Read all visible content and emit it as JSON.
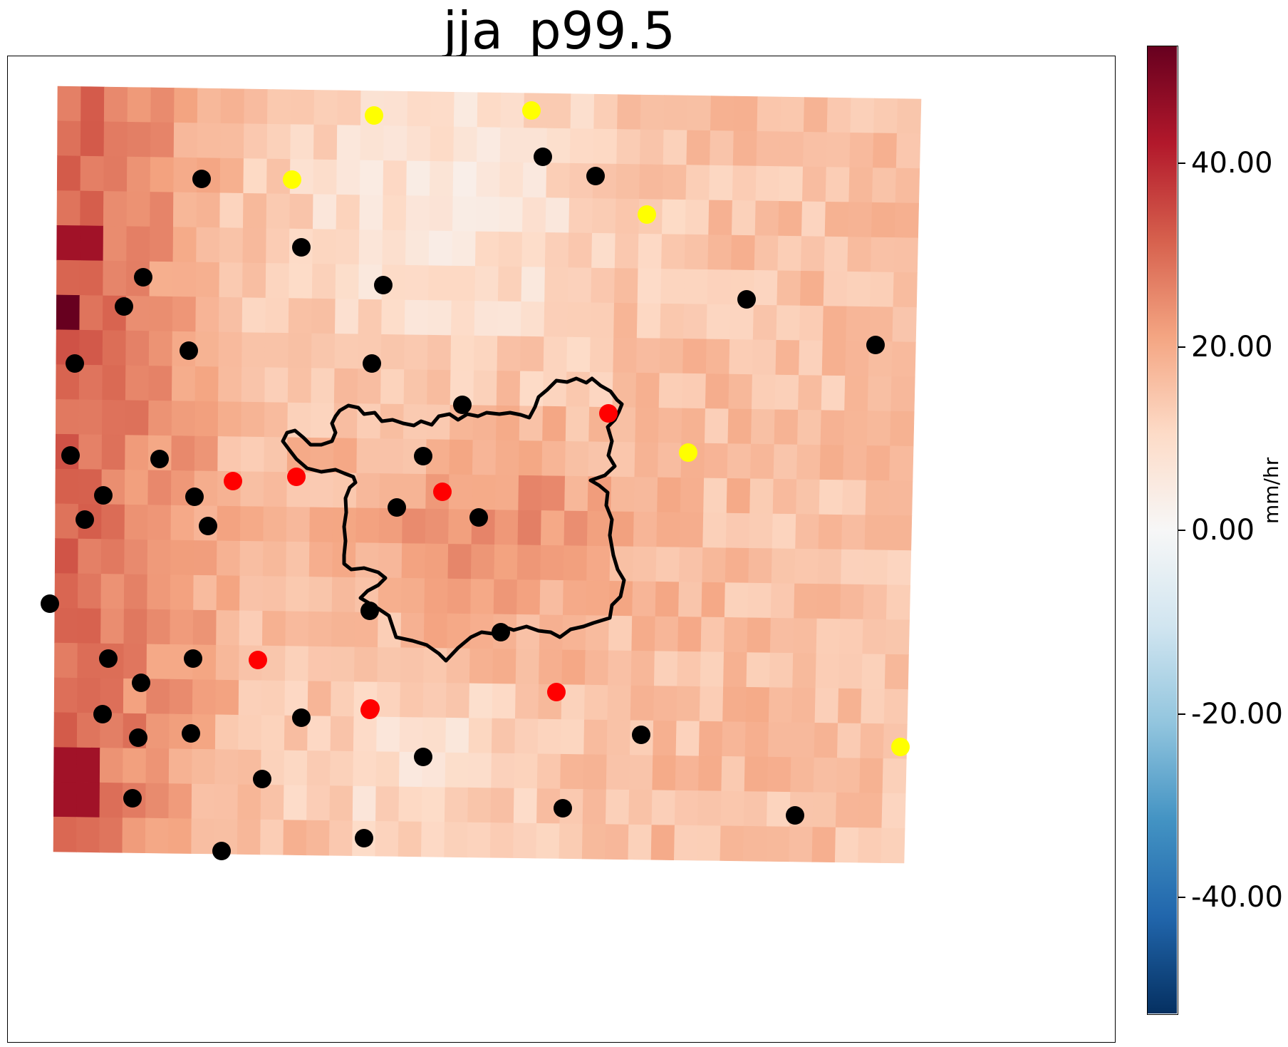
{
  "title": "jja_p99.5",
  "colorbar": {
    "unit": "mm/hr",
    "min": -52,
    "max": 52,
    "colormap": "RdBu_r",
    "ticks": [
      {
        "value": 40,
        "label": "40.00"
      },
      {
        "value": 20,
        "label": "20.00"
      },
      {
        "value": 0,
        "label": "0.00"
      },
      {
        "value": -20,
        "label": "-20.00"
      },
      {
        "value": -40,
        "label": "-40.00"
      }
    ]
  },
  "chart_data": {
    "type": "heatmap",
    "grid_rows": 22,
    "grid_cols": 37,
    "value_range": [
      -52,
      52
    ],
    "field_description_by_region": {
      "west_edge_max": 52,
      "west_typical": 30,
      "central_typical": 17,
      "north_central_min": 3,
      "east_typical": 15
    },
    "station_marker_colors": {
      "black": "#000000",
      "red": "#ff0000",
      "yellow": "#ffff00"
    },
    "station_counts": {
      "black": 44,
      "red": 8,
      "yellow": 6
    }
  }
}
